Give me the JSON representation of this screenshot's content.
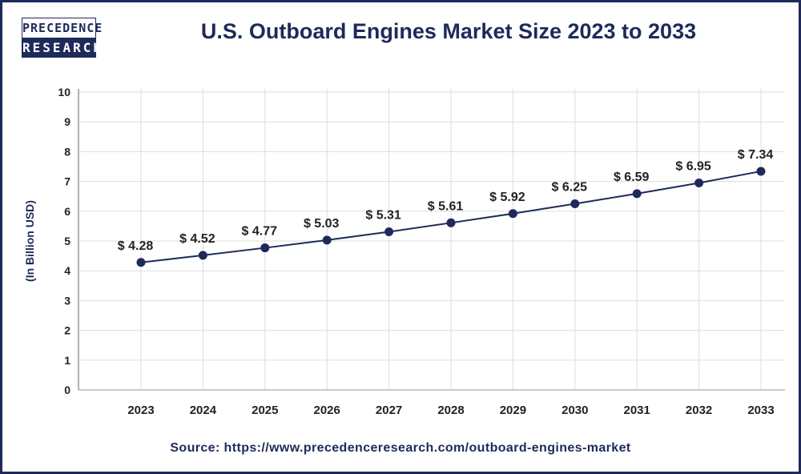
{
  "logo": {
    "line1": "PRECEDENCE",
    "line2": "RESEARCH"
  },
  "colors": {
    "brand": "#1e2a5a",
    "line": "#1e2a5a",
    "grid": "#dddddd"
  },
  "chart_data": {
    "type": "line",
    "title": "U.S. Outboard Engines Market Size 2023 to 2033",
    "ylabel": "(In Billion USD)",
    "xlabel": "",
    "categories": [
      "2023",
      "2024",
      "2025",
      "2026",
      "2027",
      "2028",
      "2029",
      "2030",
      "2031",
      "2032",
      "2033"
    ],
    "values": [
      4.28,
      4.52,
      4.77,
      5.03,
      5.31,
      5.61,
      5.92,
      6.25,
      6.59,
      6.95,
      7.34
    ],
    "data_labels": [
      "$ 4.28",
      "$ 4.52",
      "$ 4.77",
      "$ 5.03",
      "$ 5.31",
      "$ 5.61",
      "$ 5.92",
      "$ 6.25",
      "$ 6.59",
      "$ 6.95",
      "$ 7.34"
    ],
    "ylim": [
      0,
      10
    ],
    "yticks": [
      "0",
      "1",
      "2",
      "3",
      "4",
      "5",
      "6",
      "7",
      "8",
      "9",
      "10"
    ],
    "grid": true,
    "legend": "none"
  },
  "source": "Source: https://www.precedenceresearch.com/outboard-engines-market"
}
